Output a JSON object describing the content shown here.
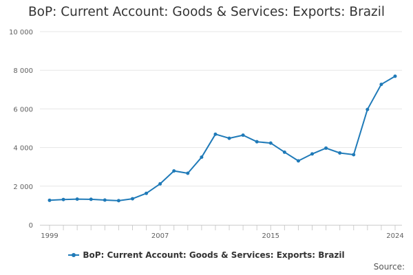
{
  "chart_data": {
    "type": "line",
    "title": "BoP: Current Account: Goods & Services: Exports: Brazil",
    "xlabel": "",
    "ylabel": "",
    "x": [
      1999,
      2000,
      2001,
      2002,
      2003,
      2004,
      2005,
      2006,
      2007,
      2008,
      2009,
      2010,
      2011,
      2012,
      2013,
      2014,
      2015,
      2016,
      2017,
      2018,
      2019,
      2020,
      2021,
      2022,
      2023,
      2024
    ],
    "series": [
      {
        "name": "BoP: Current Account: Goods & Services: Exports: Brazil",
        "values": [
          1270,
          1310,
          1330,
          1320,
          1280,
          1250,
          1350,
          1630,
          2120,
          2790,
          2670,
          3500,
          4690,
          4480,
          4640,
          4300,
          4230,
          3760,
          3310,
          3670,
          3970,
          3720,
          3630,
          5970,
          7270,
          7690
        ]
      }
    ],
    "ylim": [
      0,
      10000
    ],
    "y_ticks": [
      0,
      2000,
      4000,
      6000,
      8000,
      10000
    ],
    "y_tick_labels": [
      "0",
      "2 000",
      "4 000",
      "6 000",
      "8 000",
      "10 000"
    ],
    "x_tick_labels": [
      "1999",
      "2007",
      "2015",
      "2024"
    ],
    "x_tick_label_years": [
      1999,
      2007,
      2015,
      2024
    ],
    "grid": "horizontal",
    "legend": "bottom"
  },
  "colors": {
    "series": "#1f7ab8",
    "grid": "#e6e6e6",
    "axis": "#cccccc"
  },
  "footer": {
    "source_label": "Source:"
  }
}
